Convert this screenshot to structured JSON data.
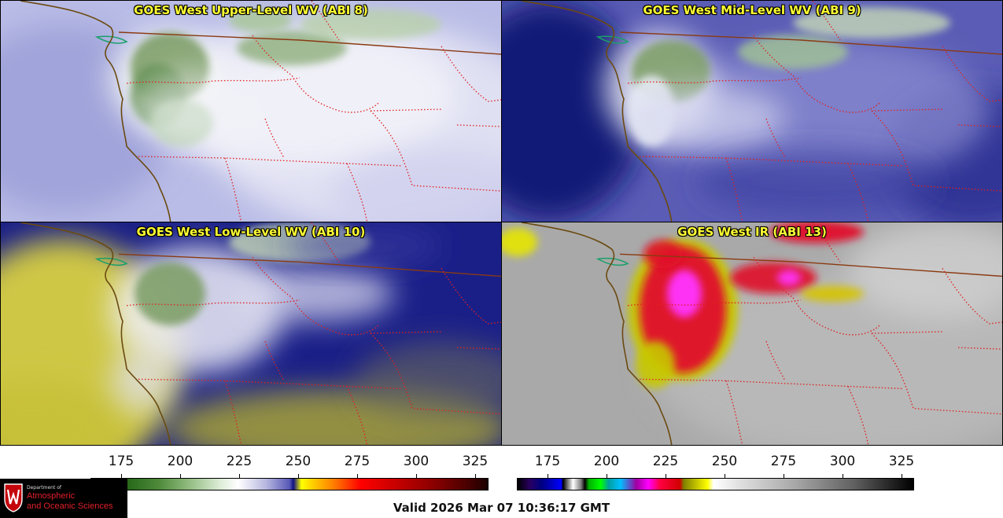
{
  "panels": [
    {
      "id": "upper",
      "title": "GOES West Upper-Level WV (ABI 8)",
      "scheme": "wv-upper"
    },
    {
      "id": "mid",
      "title": "GOES West Mid-Level WV (ABI 9)",
      "scheme": "wv-mid"
    },
    {
      "id": "low",
      "title": "GOES West Low-Level WV (ABI 10)",
      "scheme": "wv-low"
    },
    {
      "id": "ir",
      "title": "GOES West IR (ABI 13)",
      "scheme": "ir"
    }
  ],
  "colorbars": [
    {
      "name": "water-vapor-colorbar",
      "ticks": [
        "175",
        "200",
        "225",
        "250",
        "275",
        "300",
        "325"
      ]
    },
    {
      "name": "infrared-colorbar",
      "ticks": [
        "175",
        "200",
        "225",
        "250",
        "275",
        "300",
        "325"
      ]
    }
  ],
  "valid_time": "Valid 2026 Mar 07 10:36:17 GMT",
  "logo": {
    "line1": "Department of",
    "line2": "Atmospheric",
    "line3": "and Oceanic Sciences"
  },
  "colors": {
    "title": "#ffff33",
    "state_border": "#e02020",
    "coastline": "#6b4a10",
    "background": "#ffffff"
  }
}
